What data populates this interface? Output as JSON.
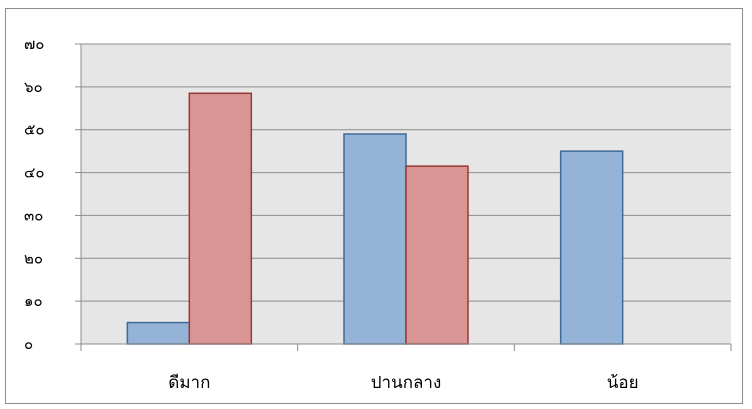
{
  "chart_data": {
    "type": "bar",
    "categories": [
      "ดีมาก",
      "ปานกลาง",
      "น้อย"
    ],
    "series": [
      {
        "values": [
          5,
          49,
          45
        ],
        "color": "#95b3d7",
        "stroke": "#3f6a9a"
      },
      {
        "values": [
          58.5,
          41.5,
          0
        ],
        "color": "#d99694",
        "stroke": "#983835"
      }
    ],
    "ylim": [
      0,
      70
    ],
    "yticks": [
      {
        "value": 0,
        "label": "๐"
      },
      {
        "value": 10,
        "label": "๑๐"
      },
      {
        "value": 20,
        "label": "๒๐"
      },
      {
        "value": 30,
        "label": "๓๐"
      },
      {
        "value": 40,
        "label": "๔๐"
      },
      {
        "value": 50,
        "label": "๕๐"
      },
      {
        "value": 60,
        "label": "๖๐"
      },
      {
        "value": 70,
        "label": "๗๐"
      }
    ],
    "grid": true,
    "plot_background": "#e6e6e6",
    "title": "",
    "xlabel": "",
    "ylabel": ""
  }
}
